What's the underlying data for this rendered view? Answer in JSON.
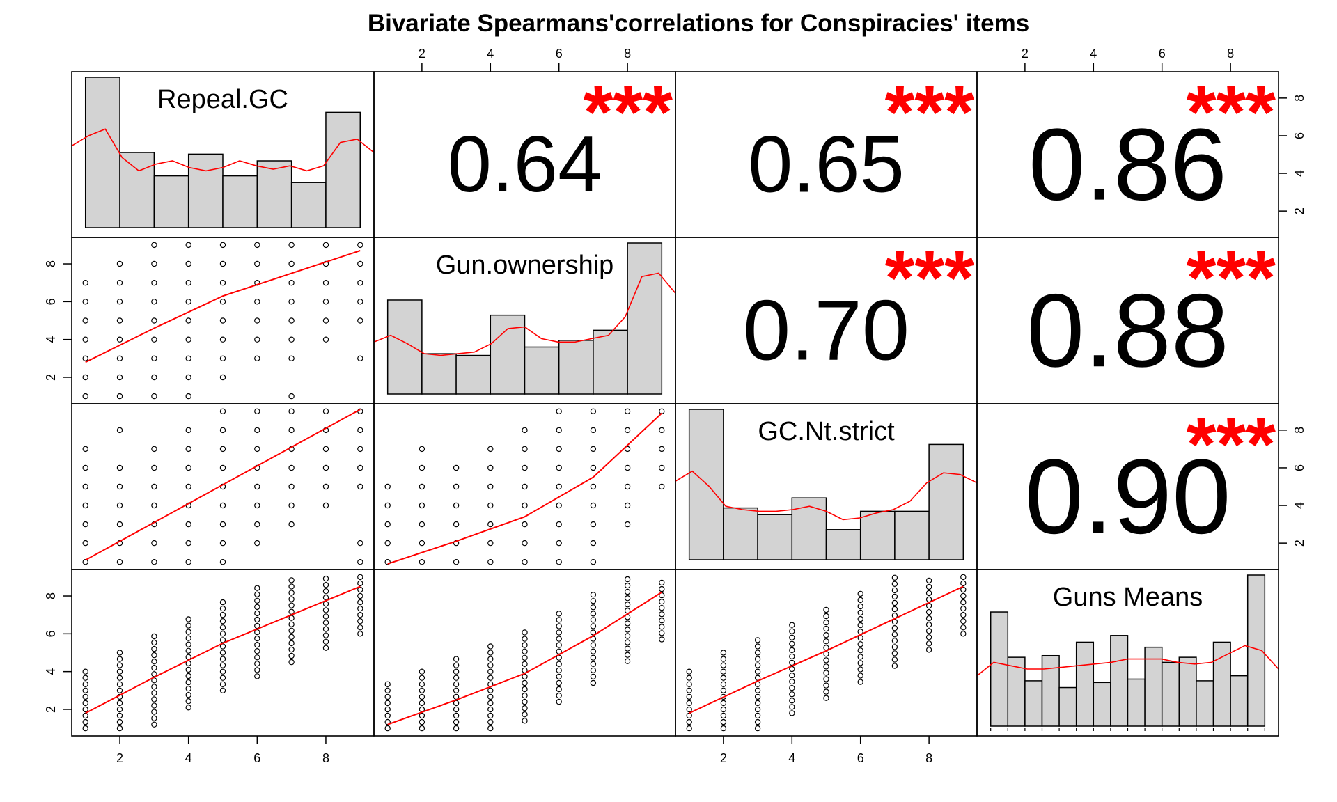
{
  "chart_data": {
    "type": "scatter-matrix",
    "title": "Bivariate Spearmans'correlations for Conspiracies' items",
    "variables": [
      "Repeal.GC",
      "Gun.ownership",
      "GC.Nt.strict",
      "Guns Means"
    ],
    "axis_range": [
      0.6,
      9.4
    ],
    "tick_values": [
      2,
      4,
      6,
      8
    ],
    "tick_labels": [
      "2",
      "4",
      "6",
      "8"
    ],
    "significance_mark": "***",
    "correlations": [
      {
        "row": 0,
        "col": 1,
        "value": "0.64"
      },
      {
        "row": 0,
        "col": 2,
        "value": "0.65"
      },
      {
        "row": 0,
        "col": 3,
        "value": "0.86"
      },
      {
        "row": 1,
        "col": 2,
        "value": "0.70"
      },
      {
        "row": 1,
        "col": 3,
        "value": "0.88"
      },
      {
        "row": 2,
        "col": 3,
        "value": "0.90"
      }
    ],
    "histograms": [
      {
        "variable": "Repeal.GC",
        "breaks": [
          1,
          2,
          3,
          4,
          5,
          6,
          7,
          8,
          9
        ],
        "heights": [
          9.0,
          4.5,
          3.1,
          4.4,
          3.1,
          4.0,
          2.7,
          6.9
        ],
        "density": [
          4.9,
          5.5,
          5.9,
          4.2,
          3.4,
          3.8,
          4.0,
          3.6,
          3.4,
          3.6,
          4.0,
          3.7,
          3.5,
          3.7,
          3.4,
          3.7,
          5.1,
          5.3,
          4.5
        ]
      },
      {
        "variable": "Gun.ownership",
        "breaks": [
          1,
          2,
          3,
          4,
          5,
          6,
          7,
          8,
          9
        ],
        "heights": [
          5.6,
          2.4,
          2.3,
          4.7,
          2.8,
          3.2,
          3.8,
          9.0
        ],
        "density": [
          3.1,
          3.5,
          3.0,
          2.4,
          2.3,
          2.4,
          2.5,
          3.0,
          3.9,
          4.0,
          3.3,
          3.1,
          3.1,
          3.3,
          3.5,
          4.6,
          7.0,
          7.2,
          6.0
        ]
      },
      {
        "variable": "GC.Nt.strict",
        "breaks": [
          1,
          2,
          3,
          4,
          5,
          6,
          7,
          8,
          9
        ],
        "heights": [
          9.0,
          3.1,
          2.7,
          3.7,
          1.8,
          2.9,
          2.9,
          6.9
        ],
        "density": [
          4.7,
          5.3,
          4.4,
          3.2,
          3.0,
          2.9,
          2.9,
          3.0,
          3.2,
          2.9,
          2.4,
          2.5,
          2.8,
          3.0,
          3.5,
          4.6,
          5.2,
          5.1,
          4.6
        ]
      },
      {
        "variable": "Guns Means",
        "breaks": [
          1,
          1.5,
          2,
          2.5,
          3,
          3.5,
          4,
          4.5,
          5,
          5.5,
          6,
          6.5,
          7,
          7.5,
          8,
          8.5,
          9
        ],
        "heights": [
          6.8,
          4.1,
          2.7,
          4.2,
          2.3,
          5.0,
          2.6,
          5.4,
          2.8,
          4.7,
          3.8,
          4.1,
          2.7,
          5.0,
          3.0,
          9.0
        ],
        "density": [
          3.0,
          3.8,
          3.6,
          3.4,
          3.4,
          3.5,
          3.6,
          3.7,
          3.8,
          4.0,
          4.0,
          4.0,
          3.8,
          3.7,
          3.8,
          4.3,
          4.8,
          4.5,
          3.4
        ]
      }
    ],
    "smooth_lines": {
      "1-0": [
        [
          1,
          2.8
        ],
        [
          3,
          4.6
        ],
        [
          5,
          6.3
        ],
        [
          7,
          7.5
        ],
        [
          9,
          8.7
        ]
      ],
      "2-0": [
        [
          1,
          1.1
        ],
        [
          3,
          3.1
        ],
        [
          5,
          5.1
        ],
        [
          7,
          7.1
        ],
        [
          9,
          9.1
        ]
      ],
      "2-1": [
        [
          1,
          0.9
        ],
        [
          3,
          2.1
        ],
        [
          5,
          3.4
        ],
        [
          7,
          5.5
        ],
        [
          9,
          8.9
        ]
      ],
      "3-0": [
        [
          1,
          1.8
        ],
        [
          3,
          3.7
        ],
        [
          5,
          5.5
        ],
        [
          7,
          7.0
        ],
        [
          9,
          8.5
        ]
      ],
      "3-1": [
        [
          1,
          1.2
        ],
        [
          3,
          2.5
        ],
        [
          5,
          3.9
        ],
        [
          7,
          5.9
        ],
        [
          9,
          8.2
        ]
      ],
      "3-2": [
        [
          1,
          1.8
        ],
        [
          3,
          3.5
        ],
        [
          5,
          5.1
        ],
        [
          7,
          6.8
        ],
        [
          9,
          8.5
        ]
      ]
    }
  }
}
